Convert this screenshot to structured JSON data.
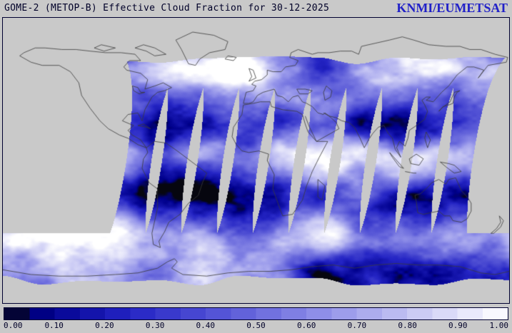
{
  "header": {
    "title": "GOME-2 (METOP-B) Effective Cloud Fraction for 30-12-2025",
    "branding": "KNMI/EUMETSAT"
  },
  "colorbar": {
    "min": 0.0,
    "max": 1.0,
    "labels": [
      "0.00",
      "0.10",
      "0.20",
      "0.30",
      "0.40",
      "0.50",
      "0.60",
      "0.70",
      "0.80",
      "0.90",
      "1.00"
    ]
  },
  "colors": {
    "background": "#c9c9c9",
    "frame": "#000030",
    "title_text": "#000028",
    "branding_text": "#2121c8",
    "coastline": "#3a3a3a",
    "colormap_stops": [
      [
        0,
        "#06060f"
      ],
      [
        0.08,
        "#00008c"
      ],
      [
        0.25,
        "#2424c4"
      ],
      [
        0.45,
        "#5b5bd8"
      ],
      [
        0.65,
        "#9595ea"
      ],
      [
        0.82,
        "#c9c9f4"
      ],
      [
        0.93,
        "#ebebfb"
      ],
      [
        1,
        "#ffffff"
      ]
    ]
  }
}
